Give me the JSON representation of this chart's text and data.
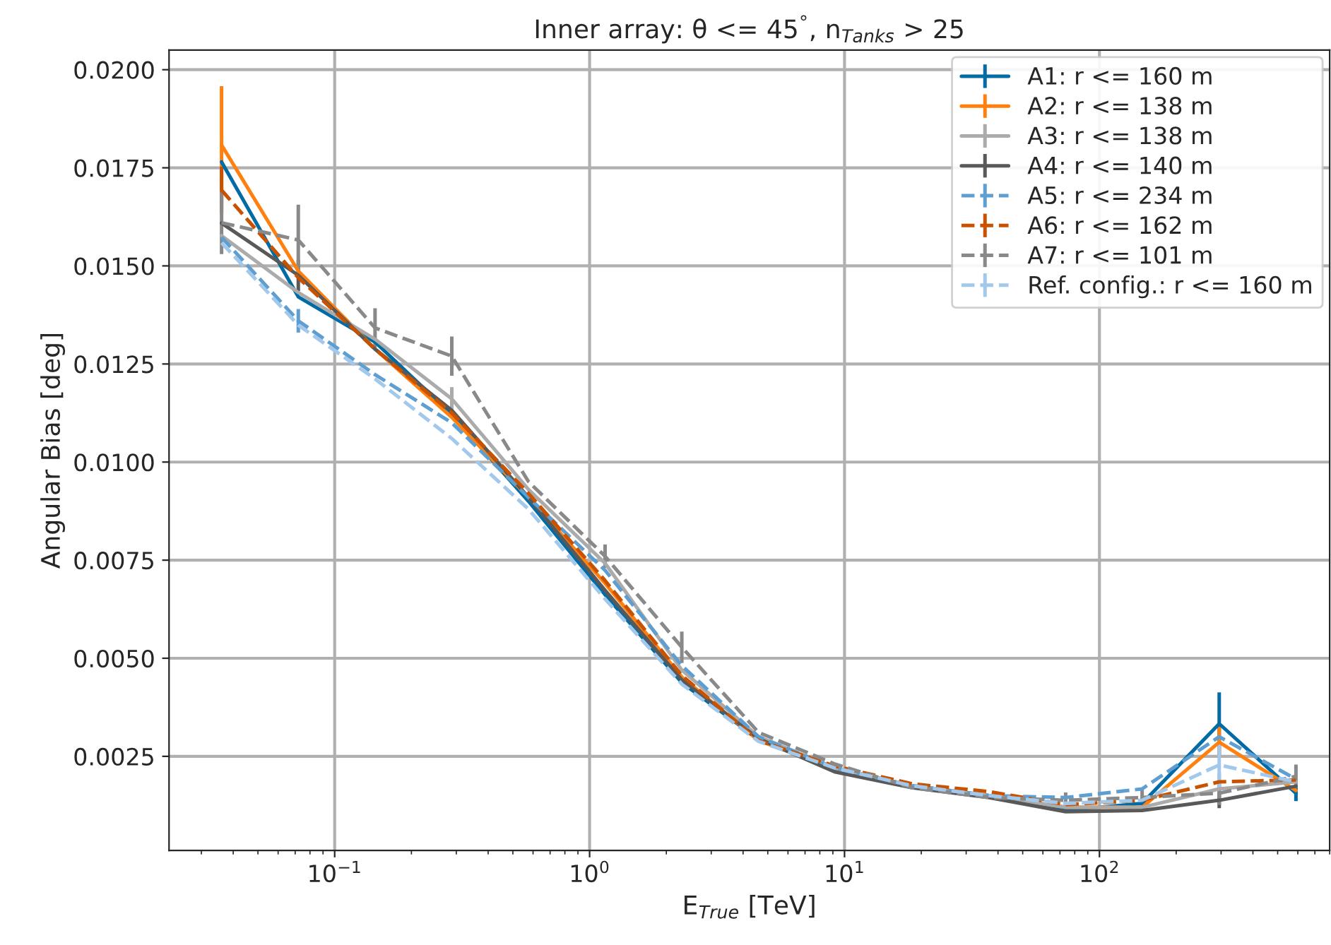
{
  "chart_data": {
    "type": "line",
    "title": "Inner array: θ <= 45$^{°}$, n$_{Tanks}$ > 25",
    "xlabel": "E$_{True}$ [TeV]",
    "ylabel": "Angular Bias [deg]",
    "x": [
      0.036,
      0.072,
      0.144,
      0.288,
      0.576,
      1.15,
      2.3,
      4.6,
      9.2,
      18.4,
      36.9,
      73.7,
      147,
      295,
      590
    ],
    "series": [
      {
        "name": "A1: r <= 160 m",
        "color": "#006ba4",
        "line_style": "solid",
        "values": [
          0.01765,
          0.01421,
          0.01306,
          0.01121,
          0.009,
          0.00662,
          0.00438,
          0.00293,
          0.00215,
          0.00175,
          0.0015,
          0.00112,
          0.0013,
          0.00333,
          0.00156
        ],
        "errors": [
          null,
          null,
          null,
          null,
          null,
          null,
          null,
          null,
          null,
          null,
          null,
          null,
          null,
          0.0008,
          0.0002
        ]
      },
      {
        "name": "A2: r <= 138 m",
        "color": "#ff800e",
        "line_style": "solid",
        "values": [
          0.01808,
          0.01487,
          0.01288,
          0.01114,
          0.0091,
          0.00691,
          0.00452,
          0.0029,
          0.0022,
          0.00175,
          0.0015,
          0.0012,
          0.0012,
          0.00286,
          0.00163
        ],
        "errors": [
          0.0015,
          null,
          null,
          null,
          null,
          null,
          null,
          null,
          null,
          null,
          null,
          null,
          null,
          0.0004,
          null
        ]
      },
      {
        "name": "A3: r <= 138 m",
        "color": "#ababab",
        "line_style": "solid",
        "values": [
          0.01577,
          0.01432,
          0.01313,
          0.01161,
          0.0093,
          0.00742,
          0.0047,
          0.003,
          0.0022,
          0.00175,
          0.0015,
          0.0012,
          0.0012,
          0.00167,
          0.00185
        ],
        "errors": [
          null,
          null,
          null,
          0.0003,
          null,
          null,
          null,
          null,
          null,
          null,
          null,
          null,
          null,
          0.0004,
          null
        ]
      },
      {
        "name": "A4: r <= 140 m",
        "color": "#595959",
        "line_style": "solid",
        "values": [
          0.01609,
          0.01476,
          0.01288,
          0.01132,
          0.0091,
          0.00673,
          0.00445,
          0.00295,
          0.0021,
          0.0017,
          0.00145,
          0.00109,
          0.00112,
          0.00138,
          0.00174
        ],
        "errors": [
          null,
          0.0004,
          null,
          null,
          null,
          null,
          null,
          null,
          null,
          null,
          null,
          null,
          null,
          0.0002,
          null
        ]
      },
      {
        "name": "A5: r <= 234 m",
        "color": "#5f9ed1",
        "line_style": "dashed",
        "values": [
          0.01573,
          0.0136,
          0.01223,
          0.011,
          0.0091,
          0.00724,
          0.00481,
          0.003,
          0.0022,
          0.00175,
          0.0015,
          0.00145,
          0.00167,
          0.003,
          0.00192
        ],
        "errors": [
          null,
          0.0003,
          null,
          null,
          null,
          null,
          null,
          null,
          null,
          null,
          null,
          null,
          null,
          null,
          null
        ]
      },
      {
        "name": "A6: r <= 162 m",
        "color": "#c85200",
        "line_style": "dashed",
        "values": [
          0.01693,
          0.0147,
          0.01288,
          0.01125,
          0.0092,
          0.00698,
          0.00456,
          0.0029,
          0.00225,
          0.0018,
          0.0016,
          0.00127,
          0.00138,
          0.00185,
          0.0019
        ],
        "errors": [
          0.0006,
          null,
          null,
          null,
          null,
          null,
          null,
          null,
          null,
          null,
          null,
          null,
          null,
          null,
          null
        ]
      },
      {
        "name": "A7: r <= 101 m",
        "color": "#898989",
        "line_style": "dashed",
        "values": [
          0.0161,
          0.01566,
          0.01342,
          0.0127,
          0.0095,
          0.0076,
          0.00528,
          0.00311,
          0.0023,
          0.0017,
          0.00145,
          0.00138,
          0.00145,
          0.00156,
          0.00199
        ],
        "errors": [
          0.0008,
          0.0009,
          0.0005,
          0.0005,
          null,
          0.0003,
          0.0004,
          null,
          null,
          null,
          null,
          0.0002,
          0.0002,
          0.0003,
          0.0003
        ]
      },
      {
        "name": "Ref. config.: r <= 160 m",
        "color": "#a2c8ec",
        "line_style": "dashed",
        "values": [
          0.01559,
          0.01349,
          0.01212,
          0.0106,
          0.0088,
          0.00651,
          0.00434,
          0.00288,
          0.0022,
          0.00175,
          0.0015,
          0.0013,
          0.00138,
          0.00228,
          0.00185
        ],
        "errors": [
          null,
          null,
          null,
          null,
          null,
          null,
          null,
          null,
          null,
          null,
          null,
          null,
          null,
          0.0006,
          null
        ]
      }
    ],
    "log": "x",
    "xlim": [
      0.0224,
      800
    ],
    "ylim": [
      0.0001,
      0.0205
    ],
    "xticks": [
      {
        "value": 0.1,
        "label": "10$^{−1}$"
      },
      {
        "value": 1,
        "label": "10$^{0}$"
      },
      {
        "value": 10,
        "label": "10$^{1}$"
      },
      {
        "value": 100,
        "label": "10$^{2}$"
      }
    ],
    "yticks": [
      {
        "value": 0.0025,
        "label": "0.0025"
      },
      {
        "value": 0.005,
        "label": "0.0050"
      },
      {
        "value": 0.0075,
        "label": "0.0075"
      },
      {
        "value": 0.01,
        "label": "0.0100"
      },
      {
        "value": 0.0125,
        "label": "0.0125"
      },
      {
        "value": 0.015,
        "label": "0.0150"
      },
      {
        "value": 0.0175,
        "label": "0.0175"
      },
      {
        "value": 0.02,
        "label": "0.0200"
      }
    ],
    "grid": true,
    "legend": "top right",
    "marker": "none"
  }
}
